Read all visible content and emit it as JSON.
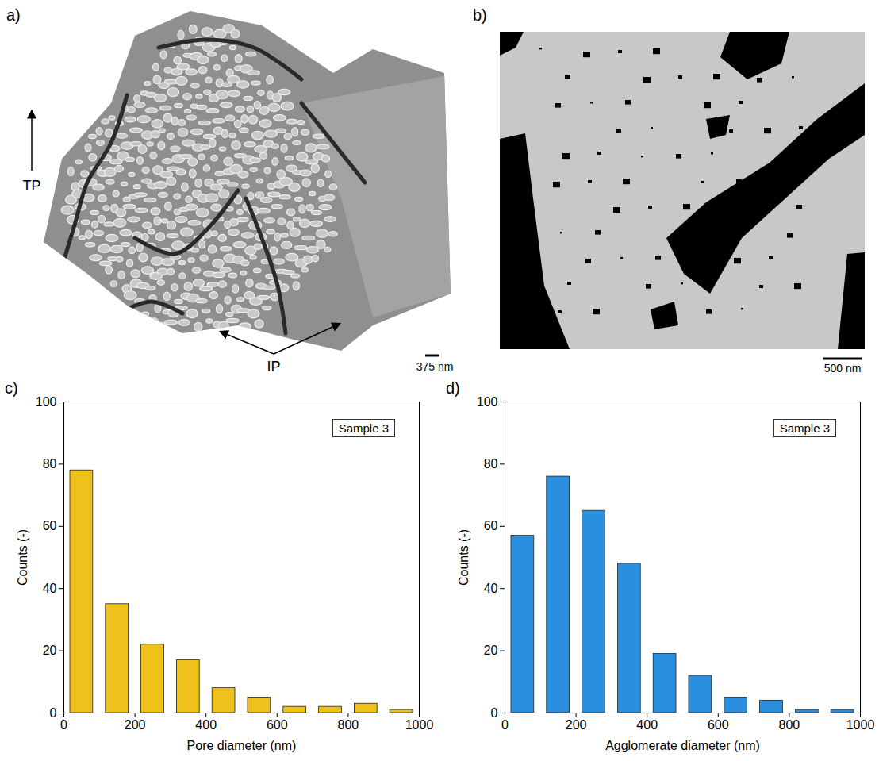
{
  "chart_data": [
    {
      "type": "image",
      "panel": "a)",
      "annotations": [
        "TP",
        "IP"
      ],
      "scale_bar": "375 nm"
    },
    {
      "type": "image",
      "panel": "b)",
      "scale_bar": "500 nm"
    },
    {
      "type": "histogram",
      "panel": "c)",
      "x_label": "Pore diameter (nm)",
      "y_label": "Counts (-)",
      "annotation": "Sample 3",
      "bins": [
        0,
        100,
        200,
        300,
        400,
        500,
        600,
        700,
        800,
        900,
        1000
      ],
      "values": [
        78,
        35,
        22,
        17,
        8,
        5,
        2,
        2,
        3,
        1
      ],
      "color": "#eec21b",
      "xlim": [
        0,
        1000
      ],
      "xticks": [
        0,
        200,
        400,
        600,
        800,
        1000
      ],
      "ylim": [
        0,
        100
      ],
      "yticks": [
        0,
        20,
        40,
        60,
        80,
        100
      ]
    },
    {
      "type": "histogram",
      "panel": "d)",
      "x_label": "Agglomerate diameter (nm)",
      "y_label": "Counts (-)",
      "annotation": "Sample 3",
      "bins": [
        0,
        100,
        200,
        300,
        400,
        500,
        600,
        700,
        800,
        900,
        1000
      ],
      "values": [
        57,
        76,
        65,
        48,
        19,
        12,
        5,
        4,
        1,
        1
      ],
      "color": "#2b8fe0",
      "xlim": [
        0,
        1000
      ],
      "xticks": [
        0,
        200,
        400,
        600,
        800,
        1000
      ],
      "ylim": [
        0,
        100
      ],
      "yticks": [
        0,
        20,
        40,
        60,
        80,
        100
      ]
    }
  ]
}
